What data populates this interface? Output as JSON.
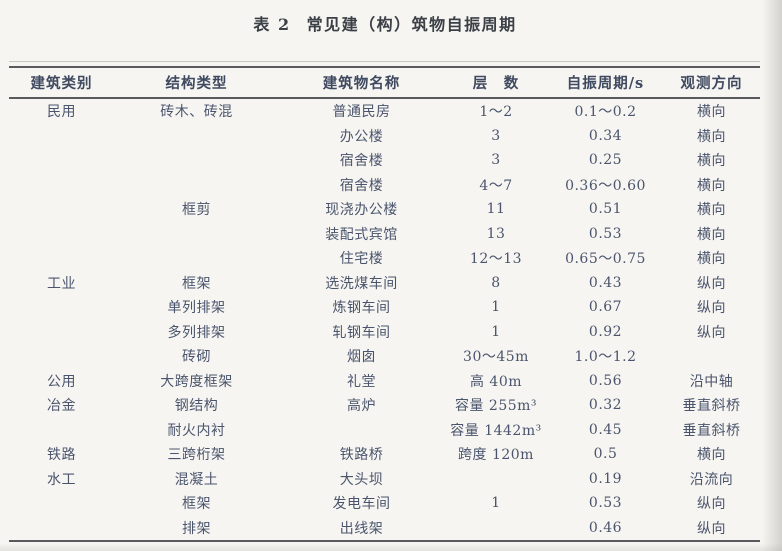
{
  "page": {
    "paper_color": "#f7f5f1",
    "ink_color": "#4a556d",
    "title_ink_color": "#3b3f46",
    "rule_color": "#595a5e"
  },
  "title": {
    "label": "表 2",
    "caption": "常见建（构）筑物自振周期"
  },
  "table": {
    "columns": [
      "建筑类别",
      "结构类型",
      "建筑物名称",
      "层　数",
      "自振周期/s",
      "观测方向"
    ],
    "rows": [
      [
        "民用",
        "砖木、砖混",
        "普通民房",
        "1～2",
        "0.1～0.2",
        "横向"
      ],
      [
        "",
        "",
        "办公楼",
        "3",
        "0.34",
        "横向"
      ],
      [
        "",
        "",
        "宿舍楼",
        "3",
        "0.25",
        "横向"
      ],
      [
        "",
        "",
        "宿舍楼",
        "4～7",
        "0.36～0.60",
        "横向"
      ],
      [
        "",
        "框剪",
        "现浇办公楼",
        "11",
        "0.51",
        "横向"
      ],
      [
        "",
        "",
        "装配式宾馆",
        "13",
        "0.53",
        "横向"
      ],
      [
        "",
        "",
        "住宅楼",
        "12～13",
        "0.65～0.75",
        "横向"
      ],
      [
        "工业",
        "框架",
        "选洗煤车间",
        "8",
        "0.43",
        "纵向"
      ],
      [
        "",
        "单列排架",
        "炼钢车间",
        "1",
        "0.67",
        "纵向"
      ],
      [
        "",
        "多列排架",
        "轧钢车间",
        "1",
        "0.92",
        "纵向"
      ],
      [
        "",
        "砖砌",
        "烟囱",
        "30～45m",
        "1.0～1.2",
        ""
      ],
      [
        "公用",
        "大跨度框架",
        "礼堂",
        "高 40m",
        "0.56",
        "沿中轴"
      ],
      [
        "冶金",
        "钢结构",
        "高炉",
        "容量 255m³",
        "0.32",
        "垂直斜桥"
      ],
      [
        "",
        "耐火内衬",
        "",
        "容量 1442m³",
        "0.45",
        "垂直斜桥"
      ],
      [
        "铁路",
        "三跨桁架",
        "铁路桥",
        "跨度 120m",
        "0.5",
        "横向"
      ],
      [
        "水工",
        "混凝土",
        "大头坝",
        "",
        "0.19",
        "沿流向"
      ],
      [
        "",
        "框架",
        "发电车间",
        "1",
        "0.53",
        "纵向"
      ],
      [
        "",
        "排架",
        "出线架",
        "",
        "0.46",
        "纵向"
      ]
    ]
  }
}
